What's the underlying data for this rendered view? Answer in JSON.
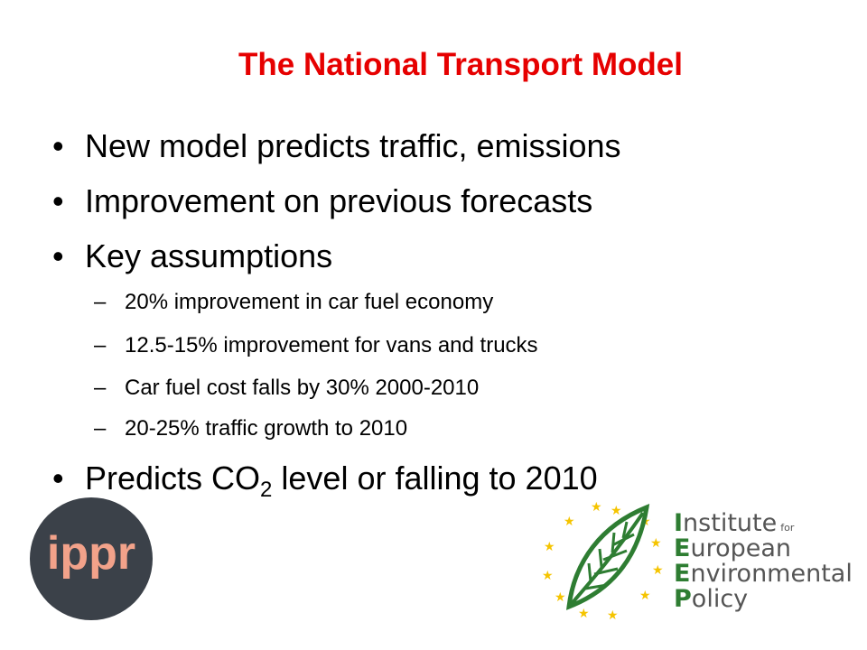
{
  "slide": {
    "title": "The National Transport Model",
    "bullets": [
      {
        "text": "New model predicts traffic, emissions"
      },
      {
        "text": "Improvement on previous forecasts"
      },
      {
        "text": "Key assumptions"
      }
    ],
    "sub_bullets": [
      {
        "text": "20% improvement in car fuel economy"
      },
      {
        "text": "12.5-15% improvement for vans and trucks"
      },
      {
        "text": "Car fuel cost falls by 30% 2000-2010"
      },
      {
        "text": "20-25% traffic growth to 2010"
      }
    ],
    "last_bullet": {
      "before": "Predicts CO",
      "subscript": "2",
      "after": " level or falling to 2010"
    },
    "bullet_glyph": "•",
    "dash_glyph": "–"
  },
  "logos": {
    "ippr": {
      "text": "ippr",
      "bg_color": "#3b4149",
      "text_color": "#f2a28a"
    },
    "ieep": {
      "line1_initial": "I",
      "line1_rest": "nstitute",
      "line1_small": "for",
      "line2_initial": "E",
      "line2_rest": "uropean",
      "line3_initial": "E",
      "line3_rest": "nvironmental",
      "line4_initial": "P",
      "line4_rest": "olicy",
      "green_color": "#2e7d32",
      "gray_color": "#555555",
      "star_color": "#f5c400"
    }
  },
  "colors": {
    "title": "#e60000",
    "text": "#000000",
    "background": "#ffffff"
  }
}
